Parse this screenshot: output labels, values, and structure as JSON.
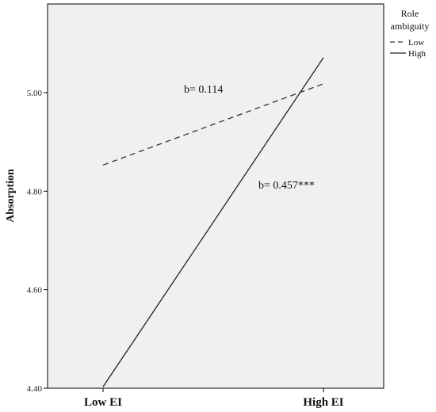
{
  "chart_data": {
    "type": "line",
    "title": "",
    "xlabel": "",
    "ylabel": "Absorption",
    "categories": [
      "Low EI",
      "High EI"
    ],
    "ylim": [
      4.4,
      5.18
    ],
    "yticks": [
      4.4,
      4.6,
      4.8,
      5.0
    ],
    "ytick_labels": [
      "4.40",
      "4.60",
      "4.80",
      "5.00"
    ],
    "grid": false,
    "legend": {
      "title": "Role ambiguity",
      "title_lines": [
        "Role",
        "ambiguity"
      ],
      "placement": "right"
    },
    "series": [
      {
        "name": "Low",
        "values": [
          4.853,
          5.018
        ],
        "style": "dashed",
        "color": "#333333"
      },
      {
        "name": "High",
        "values": [
          4.403,
          5.071
        ],
        "style": "solid",
        "color": "#222222"
      }
    ],
    "annotations": [
      {
        "text": "b= 0.114",
        "series": "Low"
      },
      {
        "text": "b= 0.457***",
        "series": "High"
      }
    ],
    "plot_background": "#f0f0f0"
  }
}
